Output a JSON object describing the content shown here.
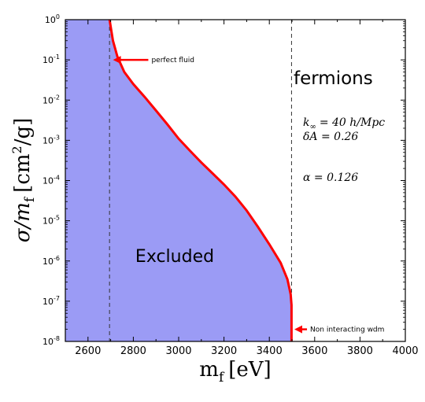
{
  "chart_data": {
    "type": "area",
    "xlabel_main": "m",
    "xlabel_sub": "f",
    "xlabel_unit": "[eV]",
    "ylabel_sigma": "σ/m",
    "ylabel_sub": "f",
    "ylabel_unit_open": "[cm",
    "ylabel_unit_exp": "2",
    "ylabel_unit_close": "/g]",
    "xlim": [
      2500,
      4000
    ],
    "ylim_log10": [
      -8,
      0
    ],
    "y_scale": "log",
    "grid": false,
    "x_ticks": [
      "2600",
      "2800",
      "3000",
      "3200",
      "3400",
      "3600",
      "3800",
      "4000"
    ],
    "y_ticks": [
      {
        "base": "10",
        "exp": "0"
      },
      {
        "base": "10",
        "exp": "-1"
      },
      {
        "base": "10",
        "exp": "-2"
      },
      {
        "base": "10",
        "exp": "-3"
      },
      {
        "base": "10",
        "exp": "-4"
      },
      {
        "base": "10",
        "exp": "-5"
      },
      {
        "base": "10",
        "exp": "-6"
      },
      {
        "base": "10",
        "exp": "-7"
      },
      {
        "base": "10",
        "exp": "-8"
      }
    ],
    "boundary_curve": {
      "color": "#ff0000",
      "points": [
        [
          2695,
          1.0
        ],
        [
          2710,
          0.3
        ],
        [
          2730,
          0.12
        ],
        [
          2760,
          0.05
        ],
        [
          2800,
          0.025
        ],
        [
          2850,
          0.012
        ],
        [
          2900,
          0.0055
        ],
        [
          2950,
          0.0025
        ],
        [
          3000,
          0.0011
        ],
        [
          3050,
          0.00055
        ],
        [
          3100,
          0.00028
        ],
        [
          3150,
          0.00015
        ],
        [
          3200,
          8e-05
        ],
        [
          3250,
          4e-05
        ],
        [
          3300,
          1.8e-05
        ],
        [
          3350,
          7e-06
        ],
        [
          3400,
          2.6e-06
        ],
        [
          3450,
          9e-07
        ],
        [
          3480,
          3.5e-07
        ],
        [
          3494,
          1.5e-07
        ],
        [
          3498,
          8e-08
        ],
        [
          3498,
          1e-08
        ]
      ]
    },
    "excluded_region": {
      "label": "Excluded",
      "fill": "#9b9bf5"
    },
    "dashed_lines_x": [
      2695,
      3498
    ],
    "annotations": [
      {
        "name": "perfect-fluid",
        "text": "perfect fluid",
        "x": 2700,
        "y": 0.1,
        "label_x": 2880
      },
      {
        "name": "non-interacting-wdm",
        "text": "Non interacting wdm",
        "x": 3500,
        "y": 2e-08,
        "label_x": 3580
      }
    ],
    "panel_text": {
      "title": "fermions",
      "k_sym": "k",
      "k_sub": "∞",
      "k_rhs": "= 40 h/Mpc",
      "dA": "δA = 0.26",
      "alpha": "α = 0.126"
    }
  }
}
